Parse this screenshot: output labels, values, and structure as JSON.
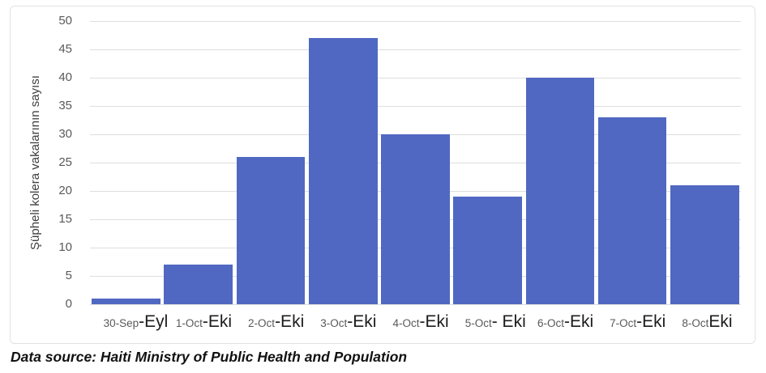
{
  "chart_data": {
    "type": "bar",
    "title": "",
    "categories": [
      "30-Sep-Eyl",
      "1-Oct-Eki",
      "2-Oct -Eki",
      "3-Oct -Eki",
      "4-Oct -Eki",
      "5-Oct- Eki",
      "6-Oct-Eki",
      "7-Oct-Eki",
      "8-Oct Eki"
    ],
    "categories_parts": [
      {
        "date": "30-Sep",
        "overlay": "-Eyl"
      },
      {
        "date": "1-Oct",
        "overlay": "-Eki"
      },
      {
        "date": "2-Oct",
        "overlay": " -Eki"
      },
      {
        "date": "3-Oct",
        "overlay": " -Eki"
      },
      {
        "date": "4-Oct",
        "overlay": " -Eki"
      },
      {
        "date": "5-Oct",
        "overlay": "- Eki"
      },
      {
        "date": "6-Oct",
        "overlay": "-Eki"
      },
      {
        "date": "7-Oct",
        "overlay": "-Eki"
      },
      {
        "date": "8-Oct",
        "overlay": " Eki"
      }
    ],
    "values": [
      1,
      7,
      26,
      47,
      30,
      19,
      40,
      33,
      21
    ],
    "xlabel": "",
    "ylabel": "Şüpheli kolera vakalarının sayısı",
    "ylim": [
      0,
      50
    ],
    "y_ticks": [
      0,
      5,
      10,
      15,
      20,
      25,
      30,
      35,
      40,
      45,
      50
    ],
    "grid": "horizontal",
    "legend": "none"
  },
  "footer": {
    "source_text": "Data source: Haiti Ministry of Public Health and Population"
  },
  "colors": {
    "bar": "#5068c2",
    "gridline": "#dedede",
    "tick_label": "#595959",
    "x_date_label": "#595959",
    "x_overlay_label": "#1c1c1c",
    "y_title": "#3e3e3e",
    "frame_border": "#e2e2e2"
  }
}
